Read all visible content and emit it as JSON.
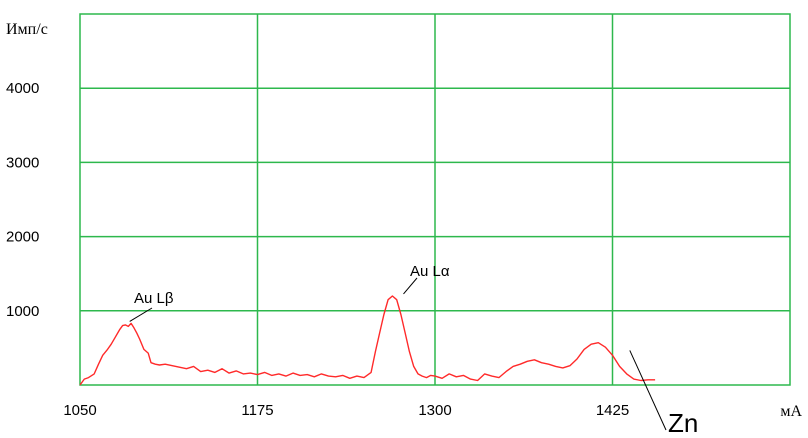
{
  "chart_data": {
    "type": "line",
    "ylabel": "Имп/с",
    "xlabel": "мА",
    "xlim": [
      1050,
      1550
    ],
    "ylim": [
      0,
      5000
    ],
    "x_ticks": [
      1050,
      1175,
      1300,
      1425
    ],
    "y_ticks": [
      1000,
      2000,
      3000,
      4000
    ],
    "grid": true,
    "series_color": "#ff2a2a",
    "grid_color": "#2db84d",
    "annotations": [
      {
        "id": "au_lb",
        "text": "Au Lβ",
        "x": 1085,
        "y": 830
      },
      {
        "id": "au_la",
        "text": "Au Lα",
        "x": 1275,
        "y": 1200
      },
      {
        "id": "zn",
        "text": "Zn",
        "x": 1440,
        "y": 520
      }
    ],
    "series": [
      {
        "x": [
          1050,
          1053,
          1056,
          1060,
          1063,
          1066,
          1069,
          1072,
          1075,
          1078,
          1080,
          1082,
          1084,
          1086,
          1088,
          1090,
          1092,
          1095,
          1098,
          1100,
          1103,
          1106,
          1110,
          1115,
          1120,
          1125,
          1130,
          1135,
          1140,
          1145,
          1150,
          1155,
          1160,
          1165,
          1170,
          1175,
          1180,
          1185,
          1190,
          1195,
          1200,
          1205,
          1210,
          1215,
          1220,
          1225,
          1230,
          1235,
          1240,
          1245,
          1250,
          1255,
          1258,
          1261,
          1264,
          1267,
          1270,
          1273,
          1276,
          1279,
          1282,
          1285,
          1288,
          1291,
          1294,
          1297,
          1300,
          1305,
          1310,
          1315,
          1320,
          1325,
          1330,
          1335,
          1340,
          1345,
          1350,
          1355,
          1360,
          1365,
          1370,
          1375,
          1380,
          1385,
          1390,
          1395,
          1400,
          1405,
          1410,
          1415,
          1420,
          1425,
          1430,
          1435,
          1440,
          1445,
          1450,
          1455
        ],
        "y": [
          0,
          80,
          100,
          150,
          280,
          400,
          470,
          550,
          650,
          750,
          800,
          810,
          790,
          830,
          770,
          700,
          620,
          480,
          430,
          300,
          280,
          270,
          280,
          260,
          240,
          220,
          250,
          180,
          200,
          170,
          220,
          160,
          190,
          150,
          160,
          140,
          170,
          130,
          150,
          120,
          160,
          130,
          140,
          110,
          150,
          120,
          110,
          130,
          90,
          120,
          100,
          170,
          450,
          700,
          950,
          1150,
          1200,
          1150,
          950,
          700,
          450,
          250,
          150,
          120,
          100,
          130,
          120,
          90,
          150,
          110,
          130,
          80,
          60,
          150,
          120,
          100,
          180,
          250,
          280,
          320,
          340,
          300,
          280,
          250,
          230,
          260,
          350,
          480,
          550,
          570,
          510,
          400,
          250,
          150,
          80,
          60,
          70,
          70
        ]
      }
    ]
  }
}
